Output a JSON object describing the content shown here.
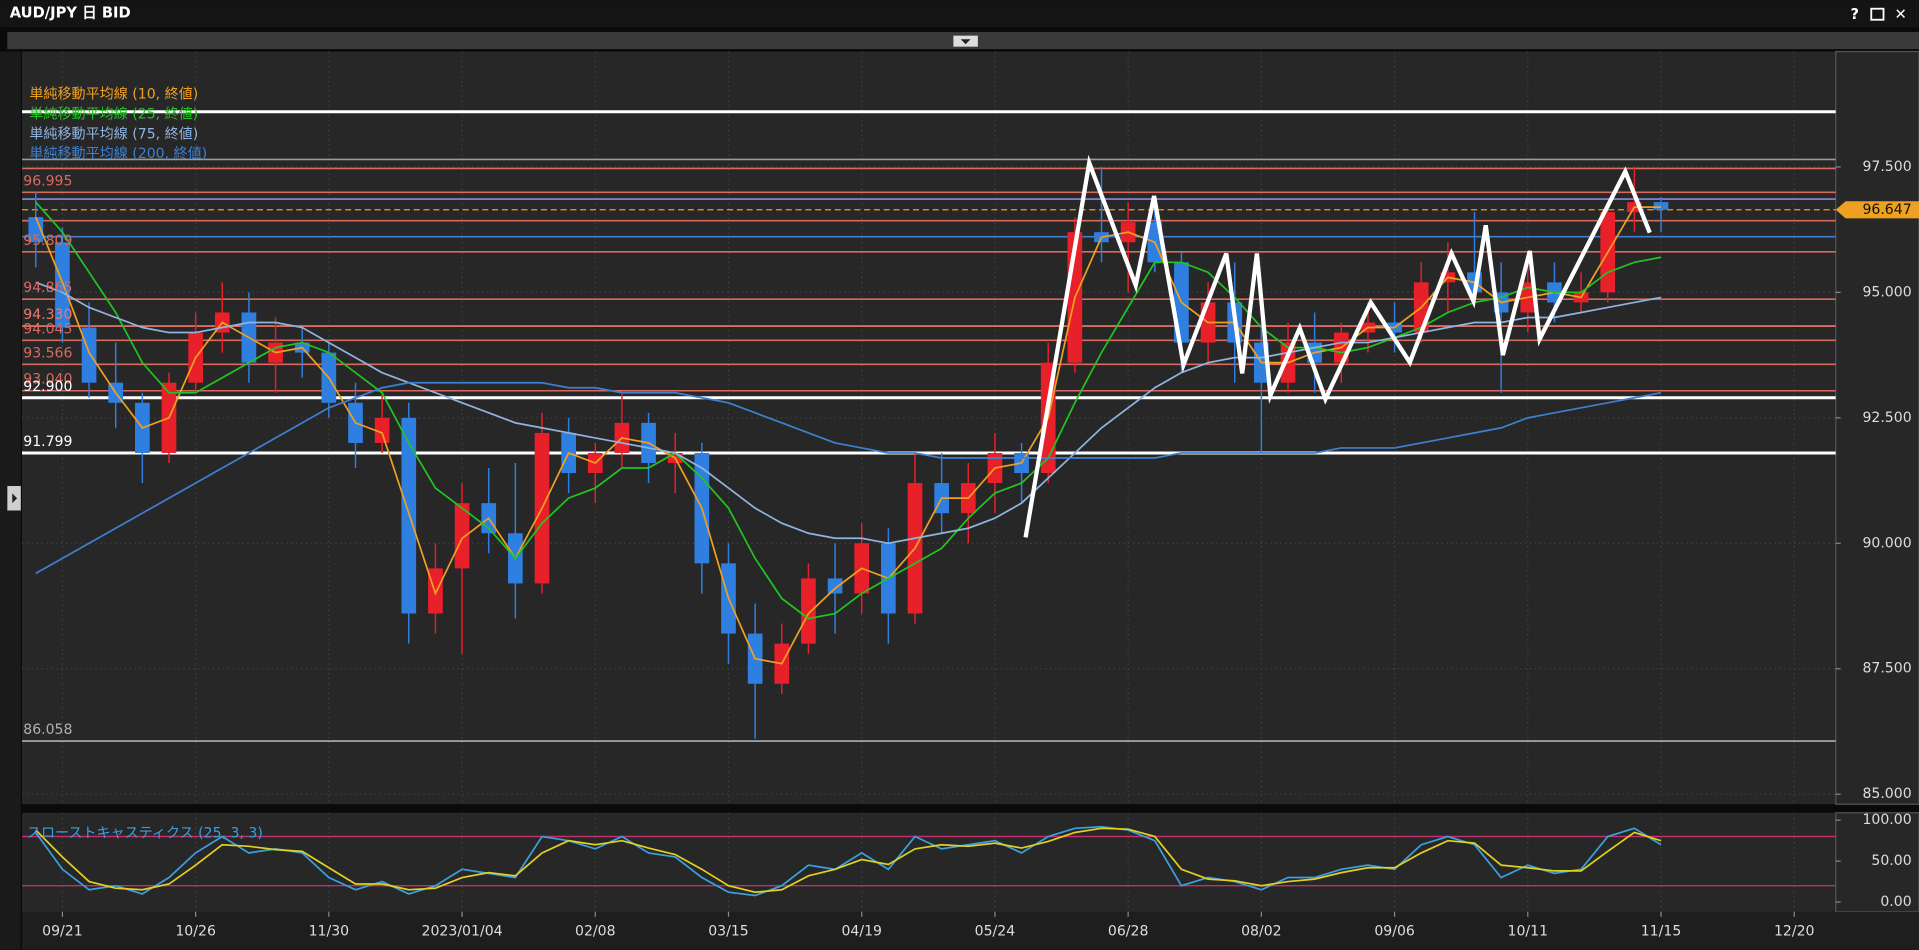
{
  "window": {
    "title": "AUD/JPY 日 BID",
    "controls": [
      "?",
      "✕"
    ]
  },
  "chart_data": {
    "type": "candlestick",
    "categories": [
      null,
      "09/21",
      null,
      null,
      null,
      null,
      "10/26",
      null,
      null,
      null,
      null,
      "11/30",
      null,
      null,
      null,
      null,
      "2023/01/04",
      null,
      null,
      null,
      null,
      "02/08",
      null,
      null,
      null,
      null,
      "03/15",
      null,
      null,
      null,
      null,
      "04/19",
      null,
      null,
      null,
      null,
      "05/24",
      null,
      null,
      null,
      null,
      "06/28",
      null,
      null,
      null,
      null,
      "08/02",
      null,
      null,
      null,
      null,
      "09/06",
      null,
      null,
      null,
      null,
      "10/11",
      null,
      null,
      null,
      null,
      "11/15",
      null,
      null,
      null,
      null,
      "12/20",
      null
    ],
    "open": [
      96.5,
      96.0,
      94.3,
      93.2,
      92.8,
      91.8,
      93.2,
      94.2,
      94.6,
      93.6,
      94.0,
      93.8,
      92.8,
      92.0,
      92.5,
      88.6,
      89.5,
      90.8,
      90.2,
      89.2,
      92.2,
      91.4,
      91.8,
      92.4,
      91.6,
      91.8,
      89.6,
      88.2,
      87.2,
      88.0,
      89.3,
      89.0,
      90.0,
      88.6,
      91.2,
      90.6,
      91.2,
      91.8,
      91.4,
      93.6,
      96.2,
      96.0,
      96.4,
      95.6,
      94.0,
      94.8,
      94.0,
      93.2,
      94.0,
      93.6,
      94.2,
      94.4,
      94.2,
      95.2,
      95.4,
      95.0,
      94.6,
      95.2,
      94.8,
      95.0,
      96.6,
      96.8,
      null,
      null,
      null,
      null,
      null,
      null
    ],
    "high": [
      97.0,
      96.3,
      94.8,
      94.0,
      93.0,
      93.4,
      94.6,
      95.2,
      95.0,
      94.5,
      94.3,
      94.0,
      93.2,
      93.0,
      92.8,
      90.0,
      91.2,
      91.5,
      91.6,
      92.6,
      92.5,
      92.0,
      93.0,
      92.6,
      92.2,
      92.0,
      90.0,
      88.8,
      88.4,
      89.6,
      90.0,
      90.4,
      90.3,
      91.8,
      91.8,
      91.6,
      92.2,
      92.0,
      94.0,
      96.5,
      97.5,
      96.8,
      96.9,
      95.8,
      95.2,
      95.6,
      94.4,
      94.4,
      94.6,
      94.4,
      94.8,
      94.8,
      95.6,
      96.0,
      96.6,
      95.6,
      95.8,
      95.6,
      95.4,
      96.8,
      97.5,
      96.9,
      null,
      null,
      null,
      null,
      null,
      null
    ],
    "low": [
      95.5,
      94.0,
      92.9,
      92.3,
      91.2,
      91.6,
      93.0,
      93.8,
      93.2,
      93.0,
      93.3,
      92.5,
      91.5,
      91.8,
      88.0,
      88.2,
      87.8,
      89.8,
      88.5,
      89.0,
      91.0,
      90.8,
      91.5,
      91.2,
      91.0,
      89.0,
      87.6,
      86.1,
      87.0,
      87.8,
      88.2,
      88.6,
      88.0,
      88.4,
      90.2,
      90.0,
      90.6,
      90.8,
      91.2,
      93.4,
      95.6,
      95.0,
      95.4,
      93.4,
      93.6,
      93.2,
      91.8,
      93.0,
      93.0,
      93.2,
      93.8,
      93.8,
      94.0,
      94.6,
      94.8,
      93.0,
      94.2,
      94.4,
      94.6,
      94.8,
      96.2,
      96.2,
      null,
      null,
      null,
      null,
      null,
      null
    ],
    "close": [
      96.0,
      94.3,
      93.2,
      92.8,
      91.8,
      93.2,
      94.2,
      94.6,
      93.6,
      94.0,
      93.8,
      92.8,
      92.0,
      92.5,
      88.6,
      89.5,
      90.8,
      90.2,
      89.2,
      92.2,
      91.4,
      91.8,
      92.4,
      91.6,
      91.8,
      89.6,
      88.2,
      87.2,
      88.0,
      89.3,
      89.0,
      90.0,
      88.6,
      91.2,
      90.6,
      91.2,
      91.8,
      91.4,
      93.6,
      96.2,
      96.0,
      96.4,
      95.6,
      94.0,
      94.8,
      94.0,
      93.2,
      94.0,
      93.6,
      94.2,
      94.4,
      94.2,
      95.2,
      95.4,
      95.0,
      94.6,
      95.2,
      94.8,
      95.0,
      96.6,
      96.8,
      96.647,
      null,
      null,
      null,
      null,
      null,
      null
    ],
    "up_color": "#e8202a",
    "down_color": "#2f7fe0",
    "series": [
      {
        "name": "単純移動平均線 (10, 終値)",
        "color": "#f0a020",
        "values": [
          96.5,
          95.2,
          93.8,
          93.0,
          92.3,
          92.5,
          93.7,
          94.4,
          94.1,
          93.8,
          93.9,
          93.3,
          92.4,
          92.2,
          90.6,
          89.0,
          90.1,
          90.5,
          89.7,
          90.7,
          91.8,
          91.6,
          92.1,
          92.0,
          91.7,
          90.7,
          88.9,
          87.7,
          87.6,
          88.6,
          89.1,
          89.5,
          89.3,
          89.9,
          90.9,
          90.9,
          91.5,
          91.6,
          92.5,
          94.9,
          96.1,
          96.2,
          96.0,
          94.8,
          94.4,
          94.4,
          93.6,
          93.6,
          93.8,
          93.9,
          94.3,
          94.3,
          94.7,
          95.3,
          95.2,
          94.8,
          94.9,
          95.0,
          94.9,
          95.8,
          96.7,
          96.7,
          null,
          null,
          null,
          null,
          null,
          null
        ]
      },
      {
        "name": "単純移動平均線 (25, 終値)",
        "color": "#22c422",
        "values": [
          96.8,
          96.2,
          95.4,
          94.6,
          93.6,
          93.0,
          93.0,
          93.3,
          93.6,
          93.9,
          94.0,
          93.8,
          93.4,
          93.0,
          92.0,
          91.1,
          90.7,
          90.3,
          89.7,
          90.4,
          90.9,
          91.1,
          91.5,
          91.5,
          91.8,
          91.3,
          90.7,
          89.7,
          88.9,
          88.5,
          88.6,
          89.0,
          89.3,
          89.6,
          89.9,
          90.5,
          91.0,
          91.2,
          91.7,
          92.8,
          93.8,
          94.7,
          95.6,
          95.6,
          95.4,
          94.9,
          94.3,
          93.9,
          93.9,
          93.8,
          93.9,
          94.1,
          94.3,
          94.6,
          94.8,
          94.9,
          95.1,
          95.0,
          95.0,
          95.4,
          95.6,
          95.7,
          null,
          null,
          null,
          null,
          null,
          null
        ]
      },
      {
        "name": "単純移動平均線 (75, 終値)",
        "color": "#8fb4e0",
        "values": [
          95.2,
          95.0,
          94.7,
          94.5,
          94.3,
          94.2,
          94.2,
          94.3,
          94.4,
          94.4,
          94.3,
          94.0,
          93.7,
          93.4,
          93.2,
          93.0,
          92.8,
          92.6,
          92.4,
          92.3,
          92.2,
          92.1,
          92.0,
          91.9,
          91.8,
          91.5,
          91.1,
          90.7,
          90.4,
          90.2,
          90.1,
          90.1,
          90.0,
          90.1,
          90.2,
          90.3,
          90.5,
          90.8,
          91.3,
          91.8,
          92.3,
          92.7,
          93.1,
          93.4,
          93.6,
          93.7,
          93.7,
          93.8,
          93.9,
          94.0,
          94.0,
          94.1,
          94.2,
          94.3,
          94.4,
          94.4,
          94.5,
          94.5,
          94.6,
          94.7,
          94.8,
          94.9,
          null,
          null,
          null,
          null,
          null,
          null
        ]
      },
      {
        "name": "単純移動平均線 (200, 終値)",
        "color": "#3d80d0",
        "values": [
          89.4,
          89.7,
          90.0,
          90.3,
          90.6,
          90.9,
          91.2,
          91.5,
          91.8,
          92.1,
          92.4,
          92.7,
          92.9,
          93.1,
          93.2,
          93.2,
          93.2,
          93.2,
          93.2,
          93.2,
          93.1,
          93.1,
          93.0,
          93.0,
          93.0,
          92.9,
          92.8,
          92.6,
          92.4,
          92.2,
          92.0,
          91.9,
          91.8,
          91.8,
          91.7,
          91.7,
          91.7,
          91.7,
          91.7,
          91.7,
          91.7,
          91.7,
          91.7,
          91.8,
          91.8,
          91.8,
          91.8,
          91.8,
          91.8,
          91.9,
          91.9,
          91.9,
          92.0,
          92.1,
          92.2,
          92.3,
          92.5,
          92.6,
          92.7,
          92.8,
          92.9,
          93.0,
          null,
          null,
          null,
          null,
          null,
          null
        ]
      }
    ],
    "levels": [
      {
        "value": 98.6,
        "color": "#ffffff"
      },
      {
        "value": 97.65,
        "color": "#9a9a9a"
      },
      {
        "value": 97.47,
        "color": "#d86a5c"
      },
      {
        "value": 96.995,
        "label": "96.995",
        "color": "#d86a5c"
      },
      {
        "value": 96.86,
        "color": "#8a8ae0"
      },
      {
        "value": 96.43,
        "color": "#d86a5c"
      },
      {
        "value": 96.11,
        "color": "#3d80d0"
      },
      {
        "value": 95.809,
        "label": "95.809",
        "color": "#d86a5c"
      },
      {
        "value": 94.865,
        "label": "94.865",
        "color": "#d86a5c"
      },
      {
        "value": 94.33,
        "label": "94.330",
        "color": "#f07a6a"
      },
      {
        "value": 94.045,
        "label": "94.045",
        "color": "#d86a5c"
      },
      {
        "value": 93.566,
        "label": "93.566",
        "color": "#d86a5c"
      },
      {
        "value": 93.04,
        "label": "93.040",
        "color": "#d86a5c"
      },
      {
        "value": 92.9,
        "label": "92.900",
        "color": "#ffffff"
      },
      {
        "value": 91.799,
        "label": "91.799",
        "color": "#ffffff"
      },
      {
        "value": 86.058,
        "label": "86.058",
        "color": "#b0b0b0"
      }
    ],
    "last_price": 96.647,
    "ylim": [
      84.8,
      99.8
    ],
    "yticks": [
      {
        "value": 97.5,
        "label": "97.500"
      },
      {
        "value": 95,
        "label": "95.000"
      },
      {
        "value": 92.5,
        "label": "92.500"
      },
      {
        "value": 90,
        "label": "90.000"
      },
      {
        "value": 87.5,
        "label": "87.500"
      },
      {
        "value": 85,
        "label": "85.000"
      }
    ],
    "grid": true,
    "stochastic": {
      "title": "スローストキャスティクス (25, 3, 3)",
      "series": [
        {
          "color": "#3aa0e0",
          "values": [
            85,
            40,
            15,
            20,
            10,
            30,
            60,
            80,
            60,
            65,
            60,
            30,
            15,
            25,
            10,
            20,
            40,
            35,
            30,
            80,
            75,
            65,
            80,
            60,
            55,
            30,
            12,
            8,
            20,
            45,
            40,
            60,
            40,
            80,
            65,
            70,
            75,
            60,
            80,
            90,
            92,
            88,
            75,
            20,
            30,
            25,
            15,
            30,
            30,
            40,
            45,
            40,
            70,
            80,
            70,
            30,
            45,
            35,
            40,
            80,
            90,
            70,
            null,
            null,
            null,
            null,
            null,
            null
          ]
        },
        {
          "color": "#e0d020",
          "values": [
            88,
            55,
            25,
            17,
            15,
            22,
            45,
            70,
            68,
            64,
            62,
            42,
            22,
            22,
            15,
            17,
            30,
            36,
            32,
            60,
            75,
            70,
            75,
            66,
            58,
            40,
            20,
            12,
            15,
            32,
            40,
            52,
            46,
            65,
            70,
            68,
            72,
            66,
            74,
            85,
            90,
            89,
            80,
            40,
            28,
            26,
            20,
            25,
            28,
            36,
            42,
            42,
            60,
            75,
            72,
            45,
            42,
            38,
            38,
            62,
            85,
            75,
            null,
            null,
            null,
            null,
            null,
            null
          ]
        }
      ],
      "levels": [
        80,
        20
      ],
      "level_color": "#c0306a",
      "ylim": [
        -12,
        109
      ],
      "yticks": [
        {
          "value": 100,
          "label": "100.00"
        },
        {
          "value": 50,
          "label": "50.00"
        },
        {
          "value": 0,
          "label": "0.00"
        }
      ]
    }
  }
}
